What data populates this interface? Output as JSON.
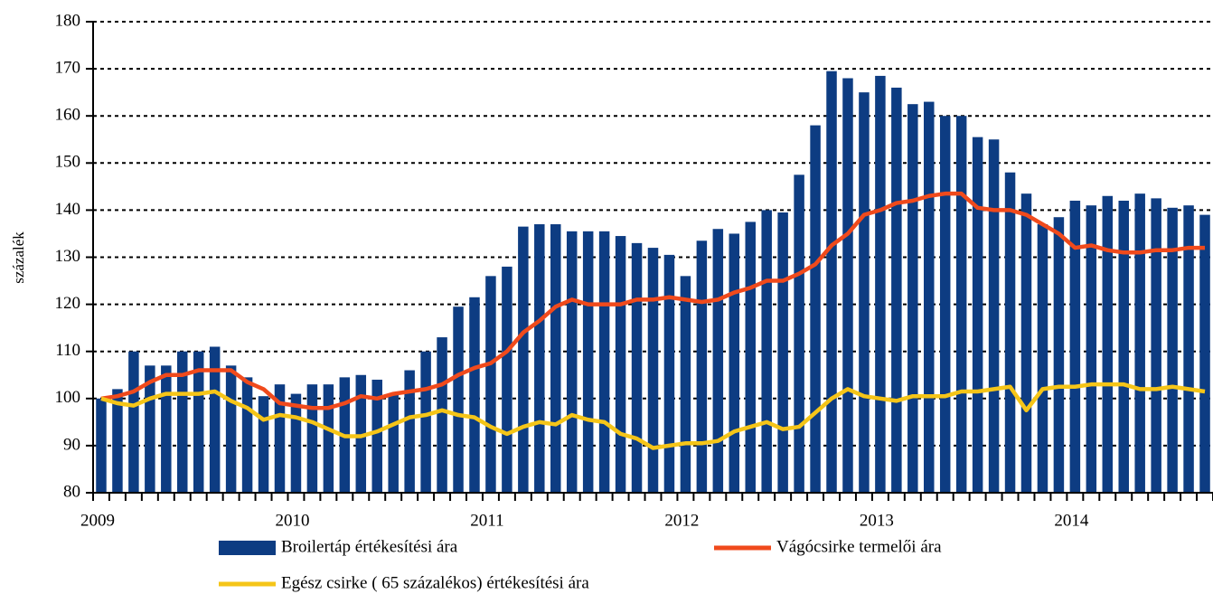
{
  "chart_data": {
    "type": "bar",
    "ylabel": "százalék",
    "categories": [
      "2009",
      null,
      null,
      null,
      null,
      null,
      null,
      null,
      null,
      null,
      null,
      null,
      "2010",
      null,
      null,
      null,
      null,
      null,
      null,
      null,
      null,
      null,
      null,
      null,
      "2011",
      null,
      null,
      null,
      null,
      null,
      null,
      null,
      null,
      null,
      null,
      null,
      "2012",
      null,
      null,
      null,
      null,
      null,
      null,
      null,
      null,
      null,
      null,
      null,
      "2013",
      null,
      null,
      null,
      null,
      null,
      null,
      null,
      null,
      null,
      null,
      null,
      "2014",
      null,
      null,
      null,
      null,
      null,
      null,
      null,
      null
    ],
    "series": [
      {
        "name": "Broilertáp értékesítési ára",
        "type": "bar",
        "color": "#0d3c82",
        "values": [
          100,
          102,
          110,
          107,
          107,
          110,
          110,
          111,
          107,
          104.5,
          100.5,
          103,
          101,
          103,
          103,
          104.5,
          105,
          104,
          101,
          106,
          110,
          113,
          119.5,
          121.5,
          126,
          128,
          136.5,
          137,
          137,
          135.5,
          135.5,
          135.5,
          134.5,
          133,
          132,
          130.5,
          126,
          133.5,
          136,
          135,
          137.5,
          140,
          139.5,
          147.5,
          158,
          169.5,
          168,
          165,
          168.5,
          166,
          162.5,
          163,
          160,
          160,
          155.5,
          155,
          148,
          143.5,
          137,
          138.5,
          142,
          141,
          143,
          142,
          143.5,
          142.5,
          140.5,
          141,
          139
        ]
      },
      {
        "name": "Vágócsirke termelői ára",
        "type": "line",
        "color": "#f04a1c",
        "values": [
          100,
          100.5,
          101.5,
          103.5,
          105,
          105,
          106,
          106,
          106,
          103.5,
          102,
          99,
          98.5,
          98,
          98,
          99,
          100.5,
          100,
          101,
          101.5,
          102,
          103,
          105,
          106.5,
          107.5,
          110,
          114,
          116.5,
          119.5,
          121,
          120,
          120,
          120,
          121,
          121,
          121.5,
          121,
          120.5,
          121,
          122.5,
          123.5,
          125,
          125,
          126.5,
          128.5,
          132.5,
          135,
          139,
          140,
          141.5,
          142,
          143,
          143.5,
          143.5,
          140.5,
          140,
          140,
          139,
          137,
          135,
          132,
          132.5,
          131.5,
          131,
          131,
          131.5,
          131.5,
          132,
          132
        ]
      },
      {
        "name": "Egész csirke ( 65 százalékos) értékesítési ára",
        "type": "line",
        "color": "#f5c518",
        "values": [
          100,
          99,
          98.5,
          100,
          101,
          101,
          101,
          101.5,
          99.5,
          98,
          95.5,
          96.5,
          96,
          95,
          93.5,
          92,
          92,
          93,
          94.5,
          96,
          96.5,
          97.5,
          96.5,
          96,
          94,
          92.5,
          94,
          95,
          94.5,
          96.5,
          95.5,
          95,
          92.5,
          91.5,
          89.5,
          90,
          90.5,
          90.5,
          91,
          93,
          94,
          95,
          93.5,
          94,
          97,
          100,
          102,
          100.5,
          100,
          99.5,
          100.5,
          100.5,
          100.5,
          101.5,
          101.5,
          102,
          102.5,
          97.5,
          102,
          102.5,
          102.5,
          103,
          103,
          103,
          102,
          102,
          102.5,
          102,
          101.5
        ]
      }
    ],
    "ylim": [
      80,
      180
    ],
    "yticks": [
      80,
      90,
      100,
      110,
      120,
      130,
      140,
      150,
      160,
      170,
      180
    ],
    "grid": true
  }
}
